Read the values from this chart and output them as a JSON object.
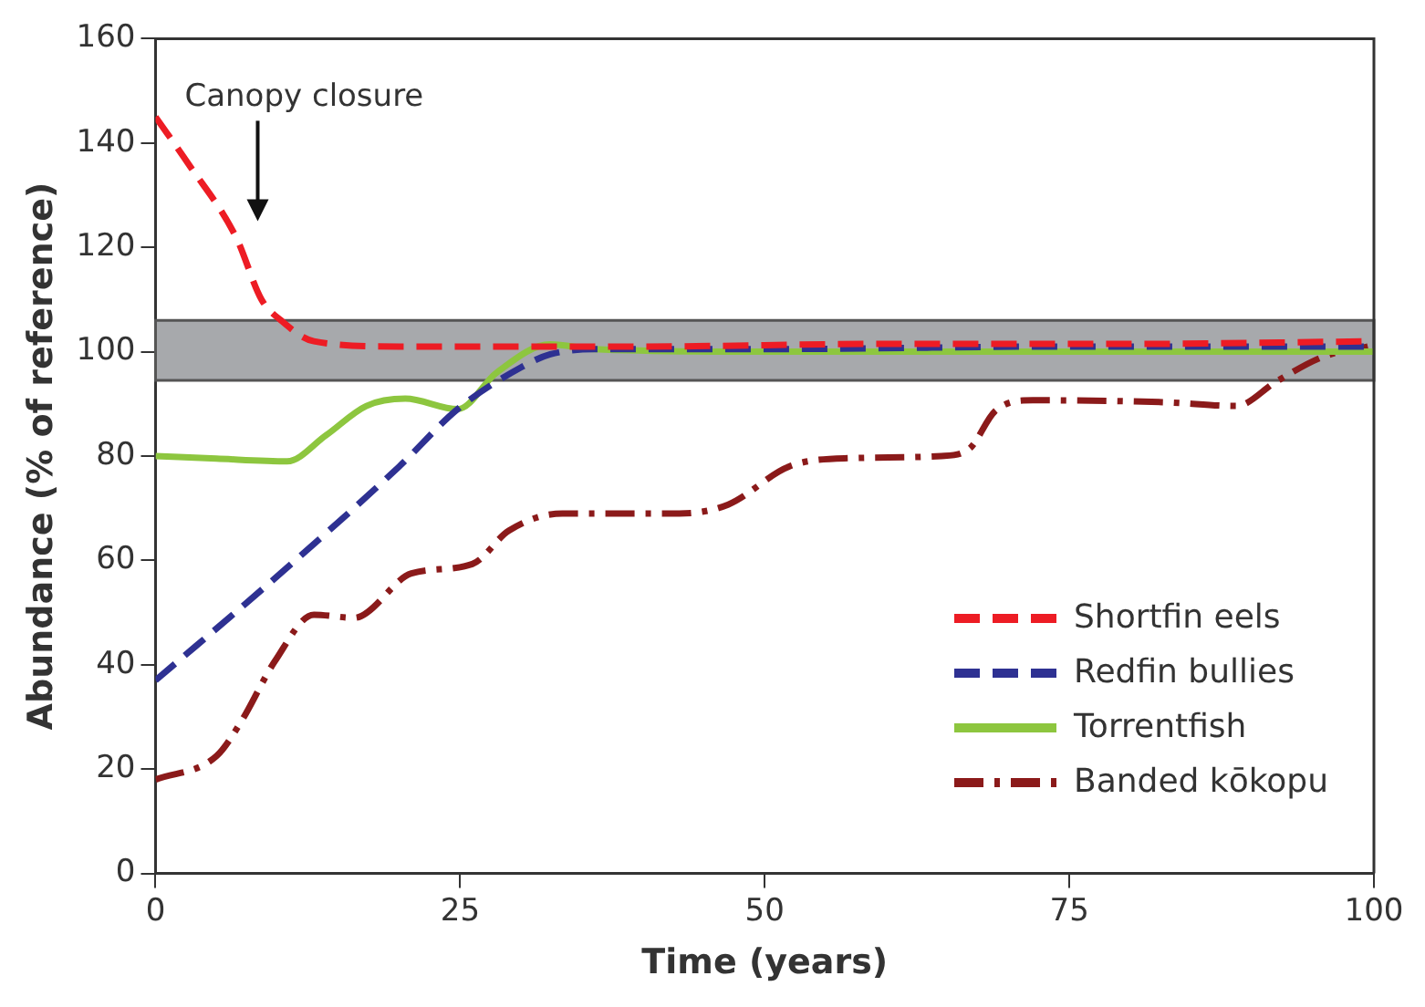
{
  "chart_data": {
    "type": "line",
    "xlabel": "Time (years)",
    "ylabel": "Abundance (% of reference)",
    "xlim": [
      0,
      100
    ],
    "xticks": [
      0,
      25,
      50,
      75,
      100
    ],
    "ylim": [
      0,
      160
    ],
    "yticks": [
      0,
      20,
      40,
      60,
      80,
      100,
      120,
      140,
      160
    ],
    "grid": false,
    "legend": "bottom right",
    "marker": "none",
    "bands": [
      {
        "axis": "y",
        "from": 94.5,
        "to": 106,
        "color": "#a7a9ac"
      }
    ],
    "annotations": [
      "Canopy closure"
    ],
    "series": [
      {
        "name": "Shortfin eels",
        "color": "#ed1c24",
        "line_style": "dashed",
        "x": [
          0,
          2.7,
          6.6,
          8.7,
          10.3,
          13,
          20,
          40,
          60,
          80,
          100
        ],
        "values": [
          145,
          136,
          122,
          110,
          106,
          102,
          101,
          101,
          101.5,
          101.5,
          102
        ]
      },
      {
        "name": "Redfin bullies",
        "color": "#2e3192",
        "line_style": "dashed",
        "x": [
          0,
          10,
          20,
          24.8,
          30,
          32.4,
          36,
          50,
          75,
          100
        ],
        "values": [
          37,
          57,
          78,
          89,
          97,
          99.5,
          100.5,
          100.5,
          101,
          101
        ]
      },
      {
        "name": "Torrentfish",
        "color": "#8dc63f",
        "line_style": "solid",
        "x": [
          0,
          5,
          10.8,
          14,
          17.3,
          20.5,
          24.8,
          28,
          32.4,
          36,
          50,
          75,
          100
        ],
        "values": [
          80,
          79.5,
          79,
          84,
          89.6,
          91,
          89,
          96,
          101.4,
          100.5,
          100,
          100,
          100
        ]
      },
      {
        "name": "Banded kōkopu",
        "color": "#8b1a1a",
        "line_style": "dashdot",
        "x": [
          0,
          5,
          7,
          9.8,
          13,
          16.3,
          21,
          26,
          29,
          33.4,
          43,
          47,
          52,
          57,
          64.5,
          66.8,
          68.9,
          72,
          83,
          88.7,
          92,
          95.8,
          99.5
        ],
        "values": [
          18,
          22.5,
          29,
          40.7,
          49.6,
          49,
          57.5,
          59.3,
          65.7,
          69,
          69,
          70.7,
          78,
          79.6,
          80,
          81.4,
          88.6,
          90.7,
          90.3,
          89.6,
          94.3,
          99,
          101
        ]
      }
    ]
  }
}
